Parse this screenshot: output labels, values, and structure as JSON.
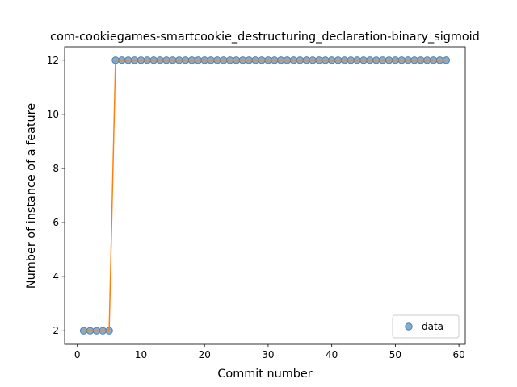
{
  "chart_data": {
    "type": "scatter",
    "title": "com-cookiegames-smartcookie_destructuring_declaration-binary_sigmoid",
    "xlabel": "Commit number",
    "ylabel": "Number of instance of a feature",
    "xlim": [
      -2,
      61
    ],
    "ylim": [
      1.5,
      12.5
    ],
    "xticks": [
      0,
      10,
      20,
      30,
      40,
      50,
      60
    ],
    "yticks": [
      2,
      4,
      6,
      8,
      10,
      12
    ],
    "grid": false,
    "legend": {
      "position": "lower-right",
      "entries": [
        "data"
      ]
    },
    "series": [
      {
        "name": "data",
        "kind": "scatter",
        "color": "#6a9fcf",
        "edge_color": "#4f7fb0",
        "x": [
          1,
          2,
          3,
          4,
          5,
          6,
          7,
          8,
          9,
          10,
          11,
          12,
          13,
          14,
          15,
          16,
          17,
          18,
          19,
          20,
          21,
          22,
          23,
          24,
          25,
          26,
          27,
          28,
          29,
          30,
          31,
          32,
          33,
          34,
          35,
          36,
          37,
          38,
          39,
          40,
          41,
          42,
          43,
          44,
          45,
          46,
          47,
          48,
          49,
          50,
          51,
          52,
          53,
          54,
          55,
          56,
          57,
          58
        ],
        "y": [
          2,
          2,
          2,
          2,
          2,
          12,
          12,
          12,
          12,
          12,
          12,
          12,
          12,
          12,
          12,
          12,
          12,
          12,
          12,
          12,
          12,
          12,
          12,
          12,
          12,
          12,
          12,
          12,
          12,
          12,
          12,
          12,
          12,
          12,
          12,
          12,
          12,
          12,
          12,
          12,
          12,
          12,
          12,
          12,
          12,
          12,
          12,
          12,
          12,
          12,
          12,
          12,
          12,
          12,
          12,
          12,
          12,
          12
        ]
      },
      {
        "kind": "line",
        "color": "#ff7f0e",
        "x": [
          1,
          2,
          3,
          4,
          5,
          6,
          7,
          8,
          9,
          10,
          11,
          12,
          13,
          14,
          15,
          16,
          17,
          18,
          19,
          20,
          21,
          22,
          23,
          24,
          25,
          26,
          27,
          28,
          29,
          30,
          31,
          32,
          33,
          34,
          35,
          36,
          37,
          38,
          39,
          40,
          41,
          42,
          43,
          44,
          45,
          46,
          47,
          48,
          49,
          50,
          51,
          52,
          53,
          54,
          55,
          56,
          57,
          58
        ],
        "y": [
          2,
          2,
          2,
          2,
          2,
          12,
          12,
          12,
          12,
          12,
          12,
          12,
          12,
          12,
          12,
          12,
          12,
          12,
          12,
          12,
          12,
          12,
          12,
          12,
          12,
          12,
          12,
          12,
          12,
          12,
          12,
          12,
          12,
          12,
          12,
          12,
          12,
          12,
          12,
          12,
          12,
          12,
          12,
          12,
          12,
          12,
          12,
          12,
          12,
          12,
          12,
          12,
          12,
          12,
          12,
          12,
          12,
          12
        ]
      }
    ]
  }
}
